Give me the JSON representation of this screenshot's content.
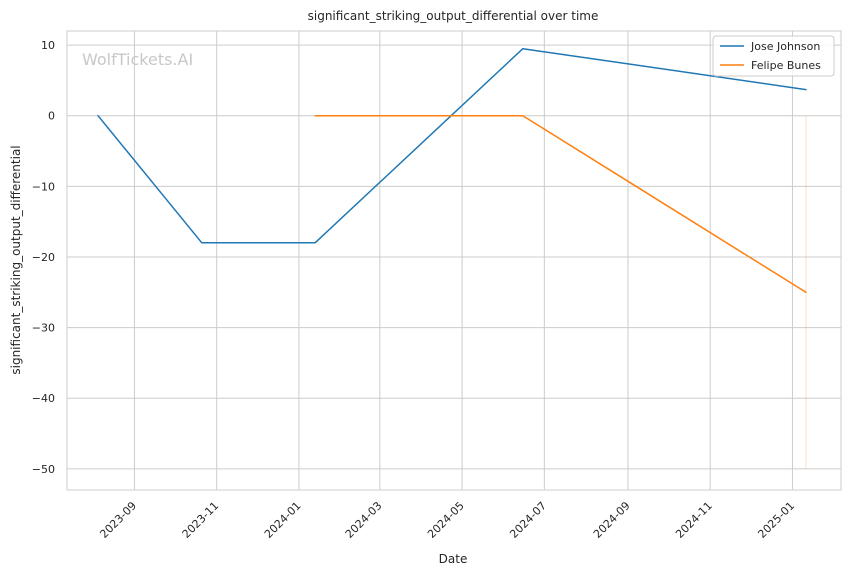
{
  "watermark": "WolfTickets.AI",
  "chart_data": {
    "type": "line",
    "title": "significant_striking_output_differential over time",
    "xlabel": "Date",
    "ylabel": "significant_striking_output_differential",
    "x_is_date": true,
    "xlim": [
      "2023-07-13",
      "2025-02-06"
    ],
    "ylim": [
      -53,
      12
    ],
    "x_ticks": [
      "2023-09",
      "2023-11",
      "2024-01",
      "2024-03",
      "2024-05",
      "2024-07",
      "2024-09",
      "2024-11",
      "2025-01"
    ],
    "x_tick_dates": [
      "2023-09-01",
      "2023-11-01",
      "2024-01-01",
      "2024-03-01",
      "2024-05-01",
      "2024-07-01",
      "2024-09-01",
      "2024-11-01",
      "2025-01-01"
    ],
    "y_ticks": [
      10,
      0,
      -10,
      -20,
      -30,
      -40,
      -50
    ],
    "grid": true,
    "legend_position": "top-right",
    "series": [
      {
        "name": "Jose Johnson",
        "color": "#1f77b4",
        "points": [
          {
            "x": "2023-08-05",
            "y": 0
          },
          {
            "x": "2023-10-21",
            "y": -18
          },
          {
            "x": "2024-01-13",
            "y": -18
          },
          {
            "x": "2024-06-15",
            "y": 9.5
          },
          {
            "x": "2025-01-11",
            "y": 3.7
          }
        ]
      },
      {
        "name": "Felipe Bunes",
        "color": "#ff7f0e",
        "points": [
          {
            "x": "2024-01-13",
            "y": 0
          },
          {
            "x": "2024-06-15",
            "y": 0
          },
          {
            "x": "2025-01-11",
            "y": -25
          }
        ]
      }
    ]
  }
}
